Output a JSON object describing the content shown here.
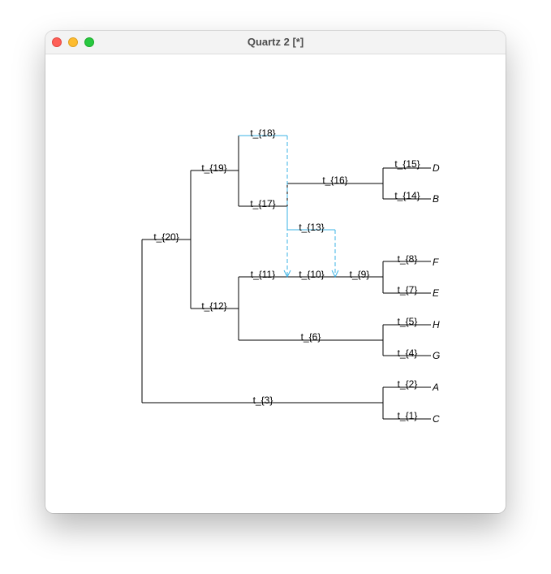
{
  "window": {
    "title": "Quartz 2 [*]"
  },
  "colors": {
    "branch": "#000000",
    "reticulation": "#3bb3e6"
  },
  "tree": {
    "branch_labels": {
      "t20": "t_{20}",
      "t19": "t_{19}",
      "t18": "t_{18}",
      "t17": "t_{17}",
      "t16": "t_{16}",
      "t15": "t_{15}",
      "t14": "t_{14}",
      "t13": "t_{13}",
      "t12": "t_{12}",
      "t11": "t_{11}",
      "t10": "t_{10}",
      "t9": "t_{9}",
      "t8": "t_{8}",
      "t7": "t_{7}",
      "t6": "t_{6}",
      "t5": "t_{5}",
      "t4": "t_{4}",
      "t3": "t_{3}",
      "t2": "t_{2}",
      "t1": "t_{1}"
    },
    "tip_labels": {
      "D": "D",
      "B": "B",
      "F": "F",
      "E": "E",
      "H": "H",
      "G": "G",
      "A": "A",
      "C": "C"
    }
  }
}
